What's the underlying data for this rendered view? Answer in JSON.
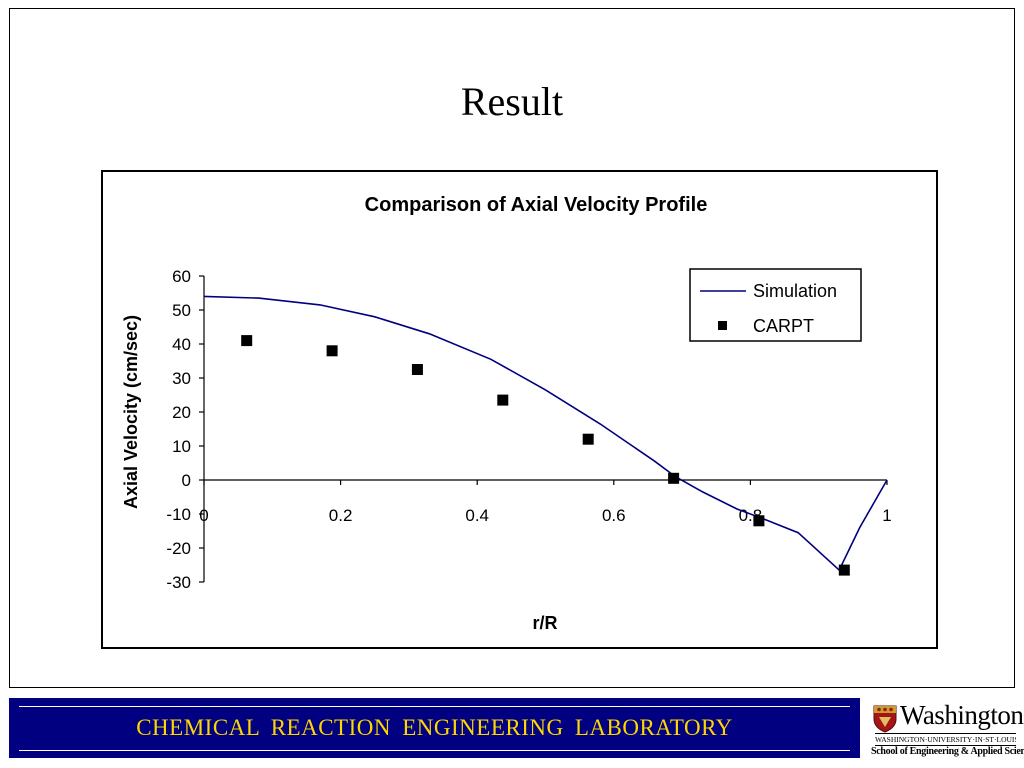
{
  "slide": {
    "title": "Result",
    "footer_text": "CHEMICAL  REACTION  ENGINEERING  LABORATORY"
  },
  "logo": {
    "name": "Washington",
    "subtitle": "WASHINGTON·UNIVERSITY·IN·ST·LOUIS",
    "school": "School of Engineering & Applied Science"
  },
  "colors": {
    "footer_bg": "#000080",
    "footer_text": "#ffd700",
    "simulation_line": "#000080",
    "carpt_marker": "#000000"
  },
  "chart_data": {
    "type": "line",
    "title": "Comparison of  Axial Velocity Profile",
    "xlabel": "r/R",
    "ylabel": "Axial Velocity (cm/sec)",
    "xlim": [
      0,
      1
    ],
    "ylim": [
      -30,
      60
    ],
    "x_ticks": [
      "0",
      "0.2",
      "0.4",
      "0.6",
      "0.8",
      "1"
    ],
    "y_ticks": [
      "60",
      "50",
      "40",
      "30",
      "20",
      "10",
      "0",
      "-10",
      "-20",
      "-30"
    ],
    "grid": false,
    "legend_position": "top-right",
    "series": [
      {
        "name": "Simulation",
        "kind": "line",
        "x": [
          0,
          0.08,
          0.17,
          0.25,
          0.33,
          0.42,
          0.5,
          0.58,
          0.66,
          0.69,
          0.73,
          0.78,
          0.82,
          0.87,
          0.93,
          0.96,
          1.0
        ],
        "y": [
          54,
          53.5,
          51.5,
          48,
          43,
          35.5,
          26.5,
          16.5,
          5.5,
          1,
          -3.5,
          -8.5,
          -11.5,
          -15.5,
          -26.5,
          -14,
          0
        ]
      },
      {
        "name": "CARPT",
        "kind": "scatter",
        "x": [
          0.0625,
          0.1875,
          0.3125,
          0.4375,
          0.5625,
          0.6875,
          0.8125,
          0.9375
        ],
        "y": [
          41,
          38,
          32.5,
          23.5,
          12,
          0.5,
          -12,
          -26.5
        ]
      }
    ]
  }
}
